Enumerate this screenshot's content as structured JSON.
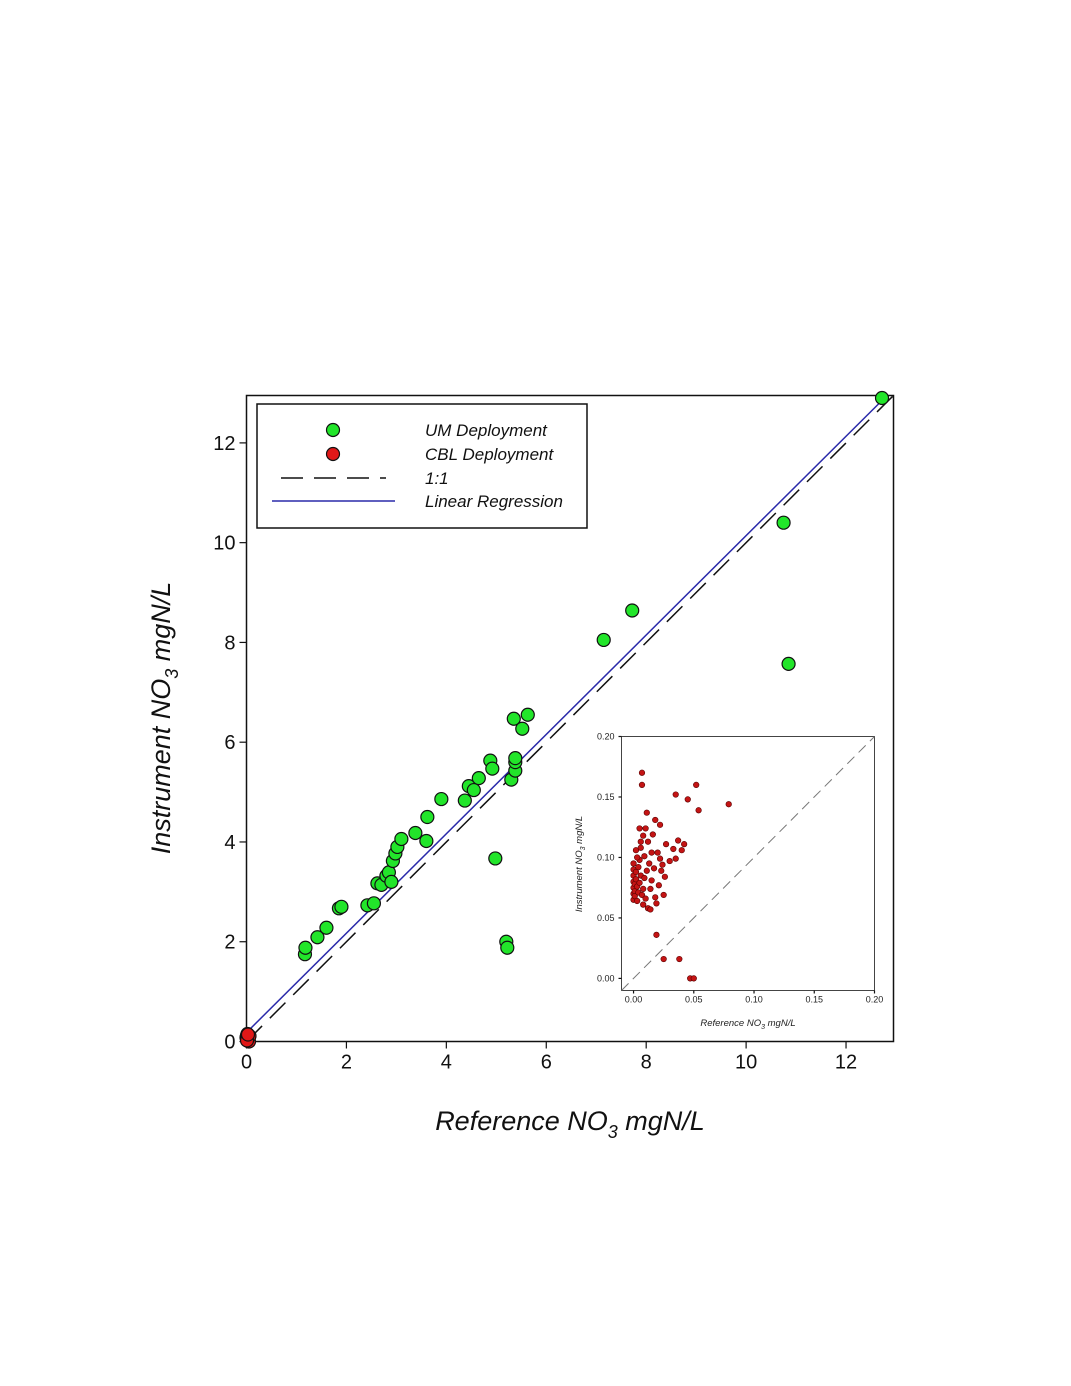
{
  "chart_data": [
    {
      "type": "scatter",
      "xlabel": "Reference NO3 mgN/L",
      "xlabel_parts": {
        "pre": "Reference NO",
        "sub": "3",
        "post": " mgN/L"
      },
      "ylabel": "Instrument NO3 mgN/L",
      "ylabel_parts": {
        "pre": "Instrument NO",
        "sub": "3",
        "post": " mgN/L"
      },
      "xlim": [
        0,
        12.95
      ],
      "ylim": [
        0,
        12.95
      ],
      "xticks": [
        "0",
        "2",
        "4",
        "6",
        "8",
        "10",
        "12"
      ],
      "yticks": [
        "0",
        "2",
        "4",
        "6",
        "8",
        "10",
        "12"
      ],
      "grid": false,
      "legend_position": "top-left",
      "legend": [
        {
          "label": "UM Deployment",
          "kind": "marker",
          "color": "#22e52a"
        },
        {
          "label": "CBL Deployment",
          "kind": "marker",
          "color": "#e01818"
        },
        {
          "label": "1:1",
          "kind": "dashed-line",
          "color": "#111111"
        },
        {
          "label": "Linear Regression",
          "kind": "line",
          "color": "#2a2aaa"
        }
      ],
      "series": [
        {
          "name": "UM Deployment",
          "color": "#22e52a",
          "points": [
            [
              1.17,
              1.75
            ],
            [
              1.18,
              1.88
            ],
            [
              1.42,
              2.09
            ],
            [
              1.6,
              2.28
            ],
            [
              1.85,
              2.67
            ],
            [
              1.9,
              2.7
            ],
            [
              2.42,
              2.73
            ],
            [
              2.55,
              2.77
            ],
            [
              2.62,
              3.17
            ],
            [
              2.7,
              3.14
            ],
            [
              2.8,
              3.32
            ],
            [
              2.85,
              3.39
            ],
            [
              2.9,
              3.2
            ],
            [
              2.93,
              3.62
            ],
            [
              2.98,
              3.77
            ],
            [
              3.02,
              3.9
            ],
            [
              3.1,
              4.06
            ],
            [
              3.38,
              4.18
            ],
            [
              3.6,
              4.02
            ],
            [
              3.62,
              4.5
            ],
            [
              3.9,
              4.86
            ],
            [
              4.37,
              4.83
            ],
            [
              4.45,
              5.12
            ],
            [
              4.55,
              5.04
            ],
            [
              4.65,
              5.28
            ],
            [
              4.88,
              5.63
            ],
            [
              4.92,
              5.47
            ],
            [
              4.98,
              3.67
            ],
            [
              5.2,
              2.0
            ],
            [
              5.22,
              1.88
            ],
            [
              5.3,
              5.25
            ],
            [
              5.35,
              6.47
            ],
            [
              5.38,
              5.43
            ],
            [
              5.38,
              5.6
            ],
            [
              5.38,
              5.68
            ],
            [
              5.52,
              6.27
            ],
            [
              5.63,
              6.55
            ],
            [
              7.15,
              8.05
            ],
            [
              7.72,
              8.64
            ],
            [
              10.75,
              10.4
            ],
            [
              10.85,
              7.57
            ],
            [
              12.72,
              12.9
            ]
          ]
        },
        {
          "name": "CBL Deployment",
          "color": "#e01818",
          "points": [
            [
              0.0,
              0.08
            ],
            [
              0.01,
              0.12
            ],
            [
              0.02,
              0.15
            ],
            [
              0.03,
              0.06
            ],
            [
              0.04,
              0.1
            ],
            [
              0.05,
              0.0
            ],
            [
              0.02,
              0.05
            ],
            [
              0.06,
              0.11
            ],
            [
              0.01,
              0.02
            ],
            [
              0.03,
              0.14
            ]
          ]
        },
        {
          "name": "1:1",
          "kind": "line",
          "from": [
            0,
            0
          ],
          "to": [
            12.95,
            12.95
          ]
        },
        {
          "name": "Linear Regression",
          "kind": "line",
          "from": [
            0,
            0.18
          ],
          "to": [
            12.75,
            12.88
          ]
        }
      ]
    },
    {
      "type": "scatter",
      "position": "inset-bottom-right",
      "xlabel": "Reference NO3 mgN/L",
      "xlabel_parts": {
        "pre": "Reference NO",
        "sub": "3",
        "post": " mgN/L"
      },
      "ylabel": "Instrument NO3 mgN/L",
      "ylabel_parts": {
        "pre": "Instrument NO",
        "sub": "3",
        "post": " mgN/L"
      },
      "xlim": [
        -0.01,
        0.2
      ],
      "ylim": [
        -0.01,
        0.2
      ],
      "xticks": [
        "0.00",
        "0.05",
        "0.10",
        "0.15",
        "0.20"
      ],
      "yticks": [
        "0.00",
        "0.05",
        "0.10",
        "0.15",
        "0.20"
      ],
      "grid": false,
      "series": [
        {
          "name": "CBL Deployment",
          "color": "#c41414",
          "points": [
            [
              0.0,
              0.065
            ],
            [
              0.0,
              0.07
            ],
            [
              0.0,
              0.075
            ],
            [
              0.0,
              0.08
            ],
            [
              0.0,
              0.085
            ],
            [
              0.0,
              0.09
            ],
            [
              0.0,
              0.095
            ],
            [
              0.001,
              0.072
            ],
            [
              0.001,
              0.078
            ],
            [
              0.001,
              0.068
            ],
            [
              0.002,
              0.082
            ],
            [
              0.002,
              0.088
            ],
            [
              0.002,
              0.106
            ],
            [
              0.003,
              0.076
            ],
            [
              0.003,
              0.064
            ],
            [
              0.004,
              0.071
            ],
            [
              0.004,
              0.092
            ],
            [
              0.005,
              0.079
            ],
            [
              0.005,
              0.098
            ],
            [
              0.005,
              0.124
            ],
            [
              0.006,
              0.085
            ],
            [
              0.006,
              0.108
            ],
            [
              0.007,
              0.17
            ],
            [
              0.007,
              0.16
            ],
            [
              0.007,
              0.069
            ],
            [
              0.008,
              0.074
            ],
            [
              0.008,
              0.118
            ],
            [
              0.009,
              0.083
            ],
            [
              0.009,
              0.101
            ],
            [
              0.01,
              0.124
            ],
            [
              0.01,
              0.066
            ],
            [
              0.011,
              0.089
            ],
            [
              0.011,
              0.137
            ],
            [
              0.012,
              0.113
            ],
            [
              0.012,
              0.058
            ],
            [
              0.013,
              0.095
            ],
            [
              0.014,
              0.074
            ],
            [
              0.014,
              0.057
            ],
            [
              0.015,
              0.081
            ],
            [
              0.016,
              0.119
            ],
            [
              0.017,
              0.091
            ],
            [
              0.018,
              0.131
            ],
            [
              0.018,
              0.067
            ],
            [
              0.019,
              0.062
            ],
            [
              0.019,
              0.036
            ],
            [
              0.02,
              0.104
            ],
            [
              0.021,
              0.077
            ],
            [
              0.022,
              0.127
            ],
            [
              0.022,
              0.099
            ],
            [
              0.023,
              0.089
            ],
            [
              0.024,
              0.094
            ],
            [
              0.025,
              0.069
            ],
            [
              0.025,
              0.016
            ],
            [
              0.026,
              0.084
            ],
            [
              0.027,
              0.111
            ],
            [
              0.03,
              0.097
            ],
            [
              0.033,
              0.107
            ],
            [
              0.035,
              0.152
            ],
            [
              0.035,
              0.099
            ],
            [
              0.037,
              0.114
            ],
            [
              0.038,
              0.016
            ],
            [
              0.04,
              0.106
            ],
            [
              0.042,
              0.111
            ],
            [
              0.045,
              0.148
            ],
            [
              0.047,
              0.0
            ],
            [
              0.05,
              0.0
            ],
            [
              0.052,
              0.16
            ],
            [
              0.054,
              0.139
            ],
            [
              0.079,
              0.144
            ],
            [
              0.003,
              0.1
            ],
            [
              0.008,
              0.061
            ],
            [
              0.015,
              0.104
            ],
            [
              0.006,
              0.113
            ]
          ]
        },
        {
          "name": "1:1",
          "kind": "line",
          "from": [
            -0.01,
            -0.01
          ],
          "to": [
            0.2,
            0.2
          ]
        }
      ]
    }
  ]
}
